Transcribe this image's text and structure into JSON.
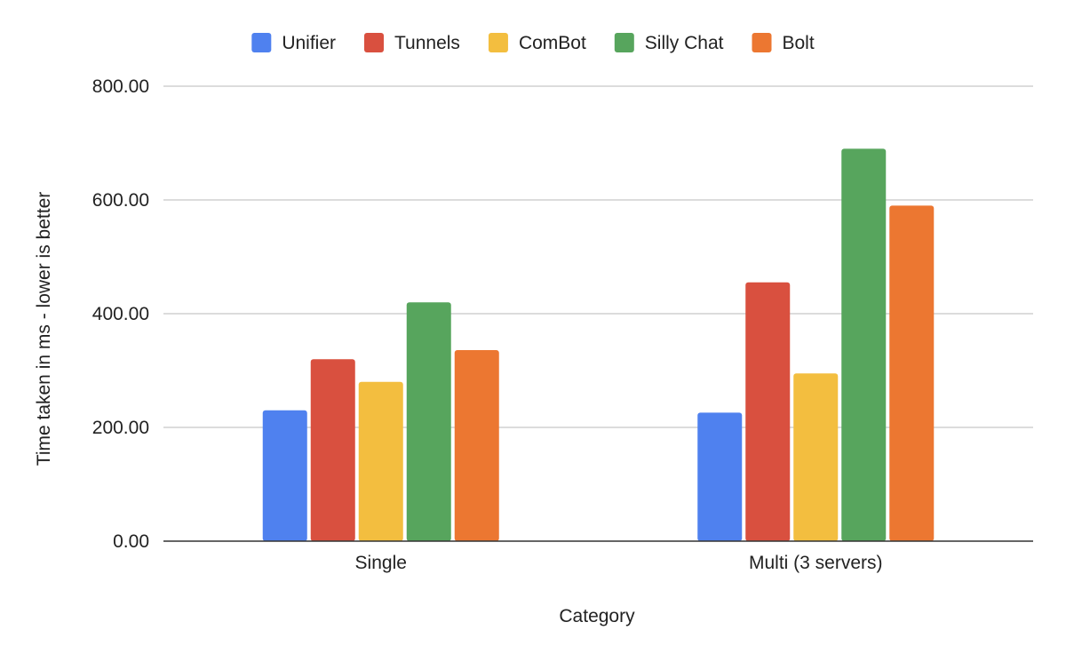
{
  "chart_data": {
    "type": "bar",
    "title": "",
    "xlabel": "Category",
    "ylabel": "Time taken in ms - lower is better",
    "categories": [
      "Single",
      "Multi (3 servers)"
    ],
    "series": [
      {
        "name": "Unifier",
        "color": "#4f81ef",
        "values": [
          230,
          226
        ]
      },
      {
        "name": "Tunnels",
        "color": "#d9503f",
        "values": [
          320,
          455
        ]
      },
      {
        "name": "ComBot",
        "color": "#f3be3f",
        "values": [
          280,
          295
        ]
      },
      {
        "name": "Silly Chat",
        "color": "#57a55d",
        "values": [
          420,
          690
        ]
      },
      {
        "name": "Bolt",
        "color": "#ec7731",
        "values": [
          336,
          590
        ]
      }
    ],
    "ylim": [
      0,
      800
    ],
    "yticks": [
      0,
      200,
      400,
      600,
      800
    ],
    "ytick_labels": [
      "0.00",
      "200.00",
      "400.00",
      "600.00",
      "800.00"
    ],
    "grid": true,
    "legend_position": "top-center"
  }
}
